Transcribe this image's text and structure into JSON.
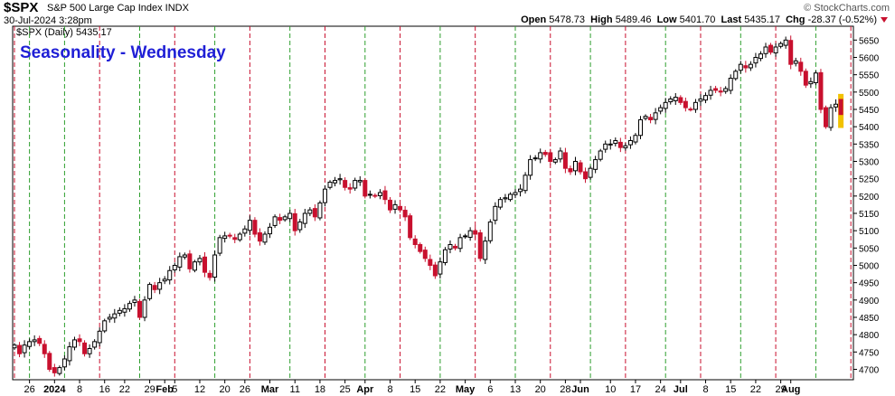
{
  "header": {
    "symbol": "$SPX",
    "name": "S&P 500 Large Cap Index  INDX",
    "timestamp": "30-Jul-2024 3:28pm",
    "copyright": "© StockCharts.com",
    "open_label": "Open",
    "open": "5478.73",
    "high_label": "High",
    "high": "5489.46",
    "low_label": "Low",
    "low": "5401.70",
    "last_label": "Last",
    "last": "5435.17",
    "chg_label": "Chg",
    "chg": "-28.37 (-0.52%)"
  },
  "legend": "$SPX (Daily) 5435.17",
  "title": "Seasonality - Wednesday",
  "colors": {
    "up": "#000000",
    "down": "#c8102e",
    "red_line": "#c8102e",
    "green_line": "#2e9e2e",
    "title": "#1f1fd6",
    "today": "#f2c200"
  },
  "chart_data": {
    "type": "candlestick",
    "ylim": [
      4670,
      5690
    ],
    "yticks": [
      4700,
      4750,
      4800,
      4850,
      4900,
      4950,
      5000,
      5050,
      5100,
      5150,
      5200,
      5250,
      5300,
      5350,
      5400,
      5450,
      5500,
      5550,
      5600,
      5650
    ],
    "xticks": [
      {
        "label": "26",
        "bold": false
      },
      {
        "label": "2024",
        "bold": true
      },
      {
        "label": "8",
        "bold": false
      },
      {
        "label": "16",
        "bold": false
      },
      {
        "label": "22",
        "bold": false
      },
      {
        "label": "29",
        "bold": false
      },
      {
        "label": "Feb",
        "bold": true
      },
      {
        "label": "5",
        "bold": false
      },
      {
        "label": "12",
        "bold": false
      },
      {
        "label": "20",
        "bold": false
      },
      {
        "label": "26",
        "bold": false
      },
      {
        "label": "Mar",
        "bold": true
      },
      {
        "label": "11",
        "bold": false
      },
      {
        "label": "18",
        "bold": false
      },
      {
        "label": "25",
        "bold": false
      },
      {
        "label": "Apr",
        "bold": true
      },
      {
        "label": "8",
        "bold": false
      },
      {
        "label": "15",
        "bold": false
      },
      {
        "label": "22",
        "bold": false
      },
      {
        "label": "May",
        "bold": true
      },
      {
        "label": "6",
        "bold": false
      },
      {
        "label": "13",
        "bold": false
      },
      {
        "label": "20",
        "bold": false
      },
      {
        "label": "28",
        "bold": false
      },
      {
        "label": "Jun",
        "bold": true
      },
      {
        "label": "10",
        "bold": false
      },
      {
        "label": "17",
        "bold": false
      },
      {
        "label": "24",
        "bold": false
      },
      {
        "label": "Jul",
        "bold": true
      },
      {
        "label": "8",
        "bold": false
      },
      {
        "label": "15",
        "bold": false
      },
      {
        "label": "22",
        "bold": false
      },
      {
        "label": "29",
        "bold": false
      },
      {
        "label": "Aug",
        "bold": true
      }
    ],
    "closes": [
      4770,
      4745,
      4770,
      4780,
      4785,
      4775,
      4745,
      4700,
      4690,
      4705,
      4730,
      4765,
      4785,
      4780,
      4745,
      4760,
      4780,
      4810,
      4840,
      4850,
      4860,
      4870,
      4875,
      4890,
      4900,
      4850,
      4900,
      4945,
      4930,
      4950,
      4960,
      4985,
      5000,
      5025,
      5030,
      4990,
      5010,
      5020,
      4980,
      4965,
      5030,
      5080,
      5085,
      5085,
      5075,
      5090,
      5105,
      5130,
      5090,
      5070,
      5090,
      5110,
      5140,
      5130,
      5140,
      5150,
      5100,
      5125,
      5150,
      5160,
      5140,
      5180,
      5220,
      5240,
      5245,
      5250,
      5225,
      5220,
      5245,
      5245,
      5200,
      5205,
      5200,
      5210,
      5190,
      5160,
      5175,
      5160,
      5140,
      5080,
      5060,
      5040,
      5020,
      5000,
      4970,
      5010,
      5045,
      5060,
      5050,
      5080,
      5085,
      5100,
      5090,
      5020,
      5070,
      5125,
      5170,
      5190,
      5195,
      5205,
      5210,
      5220,
      5260,
      5305,
      5310,
      5325,
      5320,
      5300,
      5305,
      5330,
      5280,
      5270,
      5300,
      5270,
      5250,
      5280,
      5305,
      5330,
      5350,
      5350,
      5360,
      5340,
      5345,
      5360,
      5375,
      5420,
      5430,
      5420,
      5440,
      5455,
      5470,
      5480,
      5485,
      5470,
      5455,
      5450,
      5470,
      5480,
      5490,
      5505,
      5505,
      5500,
      5510,
      5540,
      5560,
      5580,
      5570,
      5580,
      5600,
      5610,
      5630,
      5615,
      5630,
      5640,
      5650,
      5580,
      5590,
      5560,
      5520,
      5530,
      5555,
      5450,
      5400,
      5455,
      5465,
      5435
    ],
    "seasonality_lines": {
      "red_day_index": [
        0,
        17,
        32,
        47,
        62,
        77,
        92,
        107,
        122,
        137,
        152,
        167
      ],
      "green_day_index": [
        3,
        10,
        25,
        40,
        55,
        70,
        85,
        100,
        115,
        130,
        145,
        160
      ]
    },
    "xtick_day_index": [
      3,
      8,
      13,
      18,
      22,
      27,
      30,
      32,
      37,
      42,
      46,
      51,
      56,
      61,
      66,
      70,
      75,
      80,
      85,
      90,
      95,
      100,
      105,
      110,
      113,
      119,
      124,
      129,
      133,
      138,
      143,
      148,
      153,
      155
    ],
    "last_candle": {
      "open": 5478.73,
      "high": 5489.46,
      "low": 5401.7,
      "close": 5435.17,
      "up": false
    }
  }
}
